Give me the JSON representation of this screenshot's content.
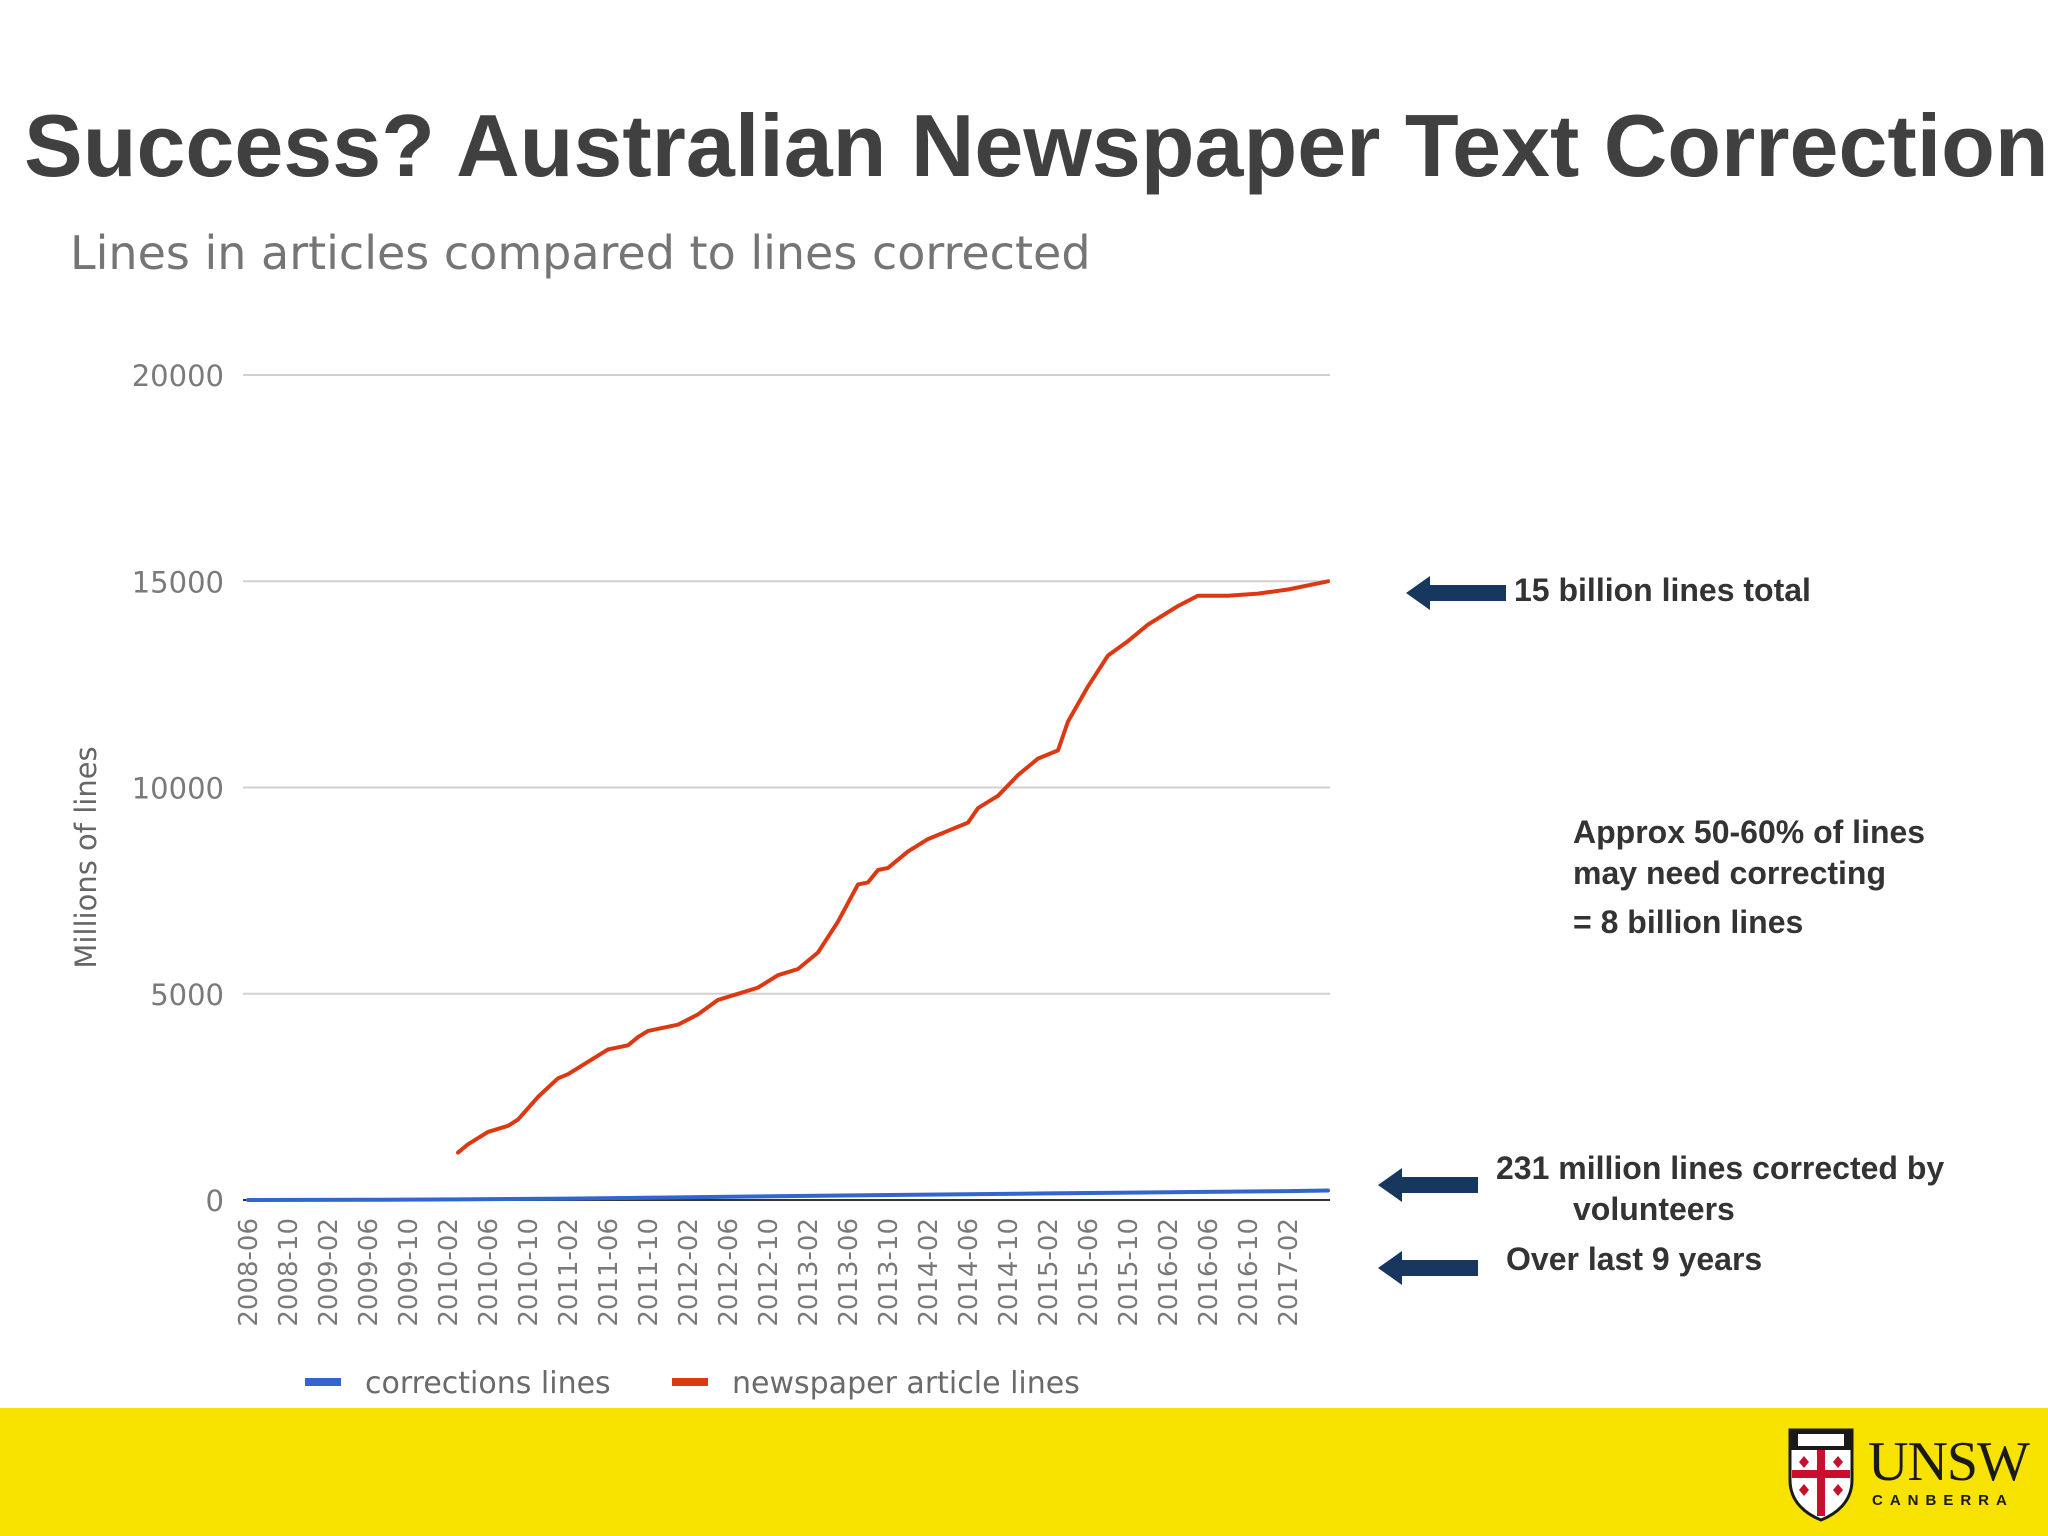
{
  "slide": {
    "title": "Success? Australian Newspaper Text Corrections"
  },
  "annotations": {
    "total": "15 billion lines total",
    "approx_line1": "Approx 50-60% of lines",
    "approx_line2": "may need correcting",
    "approx_line3": "= 8 billion lines",
    "corrected_line1": "231 million lines corrected by",
    "corrected_line2": "volunteers",
    "years": "Over last 9 years"
  },
  "logo": {
    "word": "UNSW",
    "sub": "CANBERRA"
  },
  "colors": {
    "corrections": "#3366cc",
    "articles": "#dc3912",
    "arrow": "#17375e",
    "footer": "#f8e200"
  },
  "chart_data": {
    "type": "line",
    "title": "Lines in articles compared to lines corrected",
    "xlabel": "",
    "ylabel": "Millions of lines",
    "ylim": [
      0,
      20000
    ],
    "yticks": [
      0,
      5000,
      10000,
      15000,
      20000
    ],
    "grid": true,
    "legend_position": "bottom",
    "x_ticks": [
      "2008-06",
      "2008-10",
      "2009-02",
      "2009-06",
      "2009-10",
      "2010-02",
      "2010-06",
      "2010-10",
      "2011-02",
      "2011-06",
      "2011-10",
      "2012-02",
      "2012-06",
      "2012-10",
      "2013-02",
      "2013-06",
      "2013-10",
      "2014-02",
      "2014-06",
      "2014-10",
      "2015-02",
      "2015-06",
      "2015-10",
      "2016-02",
      "2016-06",
      "2016-10",
      "2017-02"
    ],
    "x_range": [
      "2008-06",
      "2017-06"
    ],
    "series": [
      {
        "name": "corrections lines",
        "points": [
          [
            "2008-06",
            0
          ],
          [
            "2009-06",
            5
          ],
          [
            "2010-03",
            15
          ],
          [
            "2011-02",
            35
          ],
          [
            "2012-02",
            65
          ],
          [
            "2013-02",
            100
          ],
          [
            "2014-02",
            130
          ],
          [
            "2015-02",
            160
          ],
          [
            "2016-02",
            190
          ],
          [
            "2017-02",
            215
          ],
          [
            "2017-06",
            231
          ]
        ]
      },
      {
        "name": "newspaper article lines",
        "points": [
          [
            "2010-03",
            1150
          ],
          [
            "2010-04",
            1350
          ],
          [
            "2010-06",
            1650
          ],
          [
            "2010-08",
            1800
          ],
          [
            "2010-09",
            1950
          ],
          [
            "2010-11",
            2500
          ],
          [
            "2011-01",
            2950
          ],
          [
            "2011-02",
            3050
          ],
          [
            "2011-04",
            3350
          ],
          [
            "2011-06",
            3650
          ],
          [
            "2011-08",
            3750
          ],
          [
            "2011-09",
            3950
          ],
          [
            "2011-10",
            4100
          ],
          [
            "2012-01",
            4250
          ],
          [
            "2012-03",
            4500
          ],
          [
            "2012-05",
            4850
          ],
          [
            "2012-07",
            5000
          ],
          [
            "2012-09",
            5150
          ],
          [
            "2012-11",
            5450
          ],
          [
            "2013-01",
            5600
          ],
          [
            "2013-03",
            6000
          ],
          [
            "2013-05",
            6750
          ],
          [
            "2013-07",
            7650
          ],
          [
            "2013-08",
            7700
          ],
          [
            "2013-09",
            8000
          ],
          [
            "2013-10",
            8050
          ],
          [
            "2013-12",
            8450
          ],
          [
            "2014-02",
            8750
          ],
          [
            "2014-04",
            8950
          ],
          [
            "2014-06",
            9150
          ],
          [
            "2014-07",
            9500
          ],
          [
            "2014-09",
            9800
          ],
          [
            "2014-11",
            10300
          ],
          [
            "2015-01",
            10700
          ],
          [
            "2015-03",
            10900
          ],
          [
            "2015-04",
            11600
          ],
          [
            "2015-06",
            12450
          ],
          [
            "2015-08",
            13200
          ],
          [
            "2015-10",
            13550
          ],
          [
            "2015-12",
            13950
          ],
          [
            "2016-03",
            14400
          ],
          [
            "2016-05",
            14650
          ],
          [
            "2016-08",
            14650
          ],
          [
            "2016-11",
            14700
          ],
          [
            "2017-02",
            14800
          ],
          [
            "2017-06",
            15000
          ]
        ]
      }
    ]
  }
}
